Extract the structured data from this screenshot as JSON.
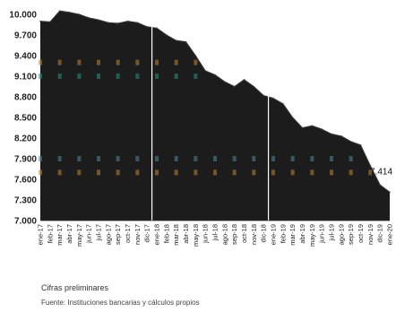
{
  "chart_data": {
    "type": "area",
    "x": [
      "ene-17",
      "feb-17",
      "mar-17",
      "abr-17",
      "may-17",
      "jun-17",
      "jul-17",
      "ago-17",
      "sep-17",
      "oct-17",
      "nov-17",
      "dic-17",
      "ene-18",
      "feb-18",
      "mar-18",
      "abr-18",
      "may-18",
      "jun-18",
      "jul-18",
      "ago-18",
      "sep-18",
      "oct-18",
      "nov-18",
      "dic-18",
      "ene-19",
      "feb-19",
      "mar-19",
      "abr-19",
      "may-19",
      "jun-19",
      "jul-19",
      "ago-19",
      "sep-19",
      "oct-19",
      "nov-19",
      "dic-19",
      "ene-20"
    ],
    "y_tick_labels": [
      "7.000",
      "7.300",
      "7.600",
      "7.900",
      "8.200",
      "8.500",
      "8.800",
      "9.100",
      "9.400",
      "9.700",
      "10.000"
    ],
    "ylim": [
      7000,
      10000
    ],
    "values": [
      9900,
      9890,
      10050,
      10030,
      10000,
      9950,
      9920,
      9880,
      9870,
      9900,
      9880,
      9820,
      9800,
      9700,
      9620,
      9600,
      9400,
      9180,
      9120,
      9020,
      8950,
      9050,
      8950,
      8820,
      8780,
      8700,
      8500,
      8350,
      8380,
      8330,
      8260,
      8230,
      8150,
      8100,
      7800,
      7520,
      7414
    ],
    "end_label": "7.414",
    "vertical_separators_after": [
      "dic-17",
      "dic-18"
    ],
    "grid": false,
    "colors": {
      "area_fill": "#1c1c1c",
      "area_edge": "#3a3a3a",
      "band_marks": [
        "#c0863a",
        "#2f8f7e",
        "#4f8a9c"
      ],
      "separator": "#ffffff"
    }
  },
  "notes": {
    "preliminary": "Cifras preliminares",
    "source": "Fuente: Instituciones bancarias y cálculos propios"
  }
}
